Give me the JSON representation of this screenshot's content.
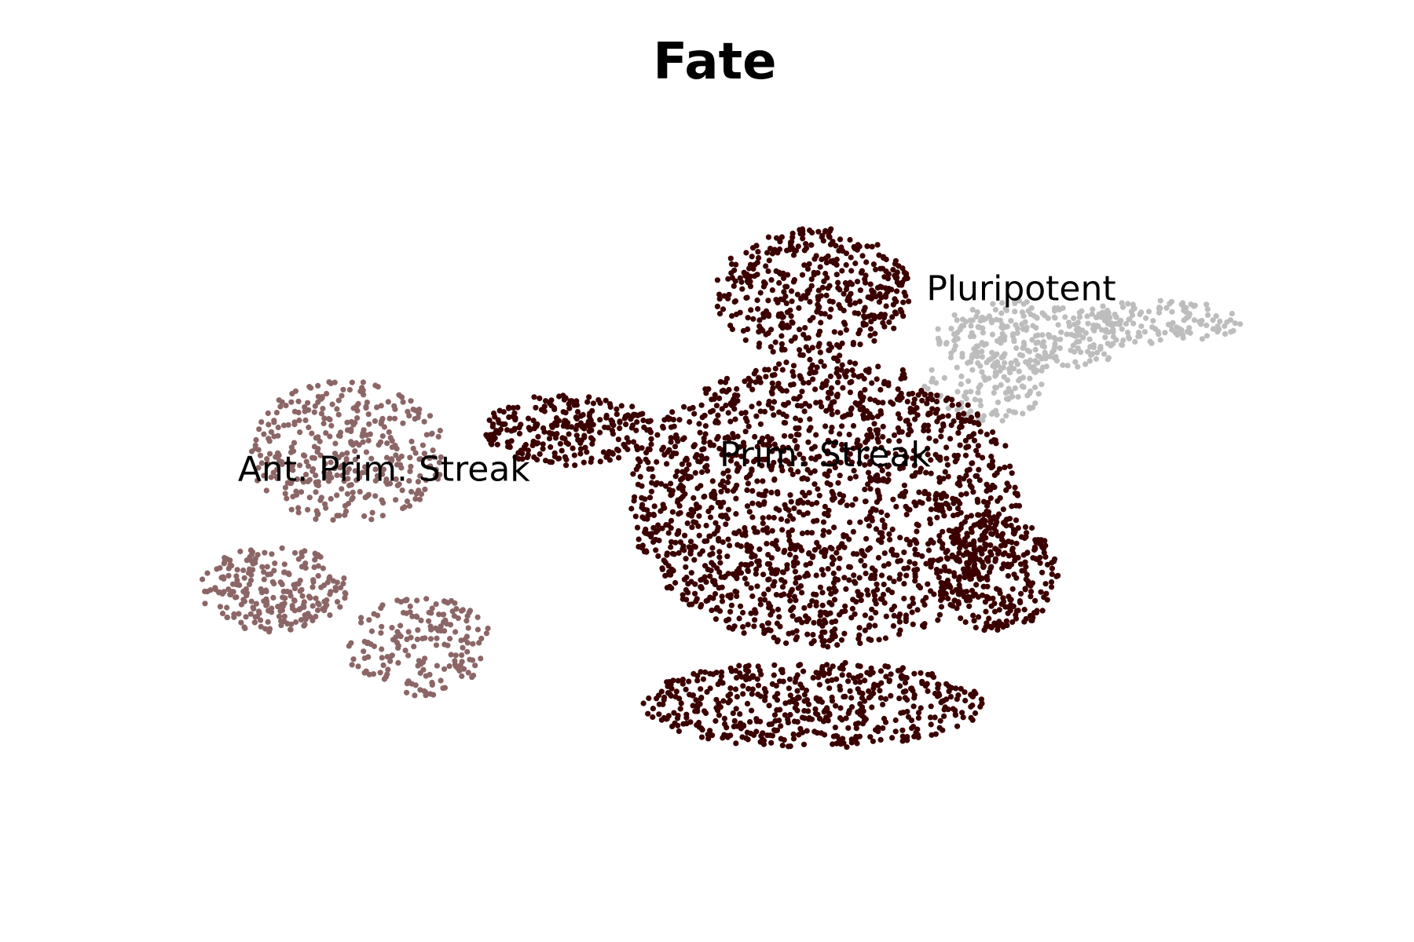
{
  "chart_data": {
    "type": "scatter",
    "title": "Fate",
    "xlabel": "",
    "ylabel": "",
    "axes_visible": false,
    "grid": false,
    "legend": "on-data",
    "xlim": [
      0,
      100
    ],
    "ylim": [
      0,
      100
    ],
    "series": [
      {
        "name": "Pluripotent",
        "color": "#bdbdbd",
        "label_pos": [
          75,
          78
        ],
        "regions": [
          {
            "cx": 76,
            "cy": 73,
            "rx": 8,
            "ry": 5,
            "n": 260,
            "seed": 11
          },
          {
            "cx": 86,
            "cy": 75,
            "rx": 7,
            "ry": 3,
            "n": 130,
            "seed": 12
          },
          {
            "cx": 72,
            "cy": 66,
            "rx": 5,
            "ry": 5,
            "n": 110,
            "seed": 13
          }
        ]
      },
      {
        "name": "Prim. Streak",
        "color": "#3b0000",
        "label_pos": [
          59,
          55
        ],
        "regions": [
          {
            "cx": 59,
            "cy": 50,
            "rx": 16,
            "ry": 20,
            "n": 1700,
            "seed": 21
          },
          {
            "cx": 58,
            "cy": 79,
            "rx": 8,
            "ry": 9,
            "n": 420,
            "seed": 22
          },
          {
            "cx": 38,
            "cy": 60,
            "rx": 7,
            "ry": 5,
            "n": 260,
            "seed": 23
          },
          {
            "cx": 73,
            "cy": 40,
            "rx": 5,
            "ry": 8,
            "n": 280,
            "seed": 24
          },
          {
            "cx": 58,
            "cy": 22,
            "rx": 14,
            "ry": 6,
            "n": 520,
            "seed": 25
          }
        ]
      },
      {
        "name": "Ant. Prim. Streak",
        "color": "#8c6666",
        "label_pos": [
          23,
          53
        ],
        "regions": [
          {
            "cx": 20,
            "cy": 57,
            "rx": 8,
            "ry": 10,
            "n": 360,
            "seed": 31
          },
          {
            "cx": 14,
            "cy": 38,
            "rx": 6,
            "ry": 6,
            "n": 240,
            "seed": 32
          },
          {
            "cx": 26,
            "cy": 30,
            "rx": 6,
            "ry": 7,
            "n": 180,
            "seed": 33
          }
        ]
      }
    ]
  }
}
